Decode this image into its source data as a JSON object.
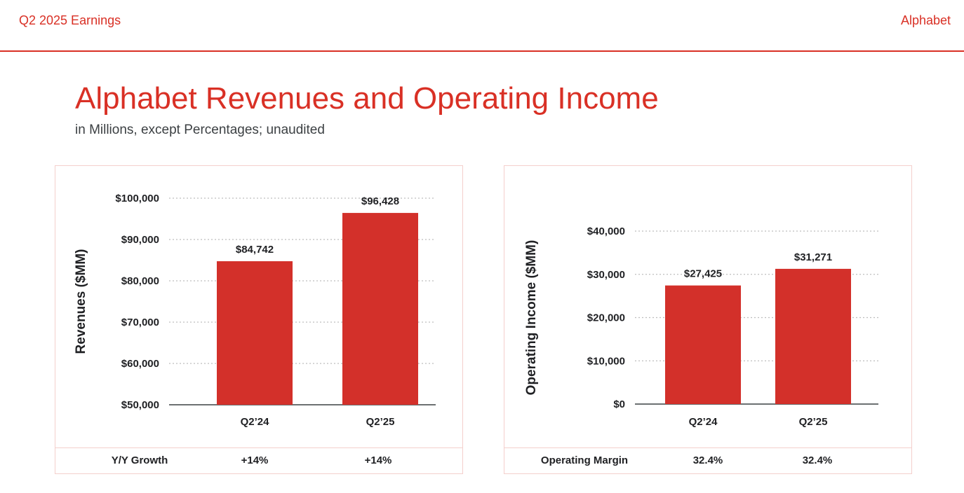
{
  "header": {
    "report_label": "Q2 2025 Earnings",
    "brand": "Alphabet"
  },
  "page": {
    "title": "Alphabet Revenues and Operating Income",
    "subtitle": "in Millions, except Percentages; unaudited"
  },
  "colors": {
    "accent": "#d93025",
    "bar": "#d3302a",
    "panel_border": "#f4cfcc",
    "gridline": "#bdbdbd",
    "axis": "#3c4043"
  },
  "chart_data": [
    {
      "type": "bar",
      "title": "",
      "xlabel": "",
      "ylabel": "Revenues ($MM)",
      "categories": [
        "Q2’24",
        "Q2’25"
      ],
      "values": [
        84742,
        96428
      ],
      "value_labels": [
        "$84,742",
        "$96,428"
      ],
      "ylim": [
        50000,
        100000
      ],
      "yticks": [
        50000,
        60000,
        70000,
        80000,
        90000,
        100000
      ],
      "ytick_labels": [
        "$50,000",
        "$60,000",
        "$70,000",
        "$80,000",
        "$90,000",
        "$100,000"
      ],
      "grid": true,
      "footer": {
        "label": "Y/Y Growth",
        "values": [
          "+14%",
          "+14%"
        ]
      }
    },
    {
      "type": "bar",
      "title": "",
      "xlabel": "",
      "ylabel": "Operating Income ($MM)",
      "categories": [
        "Q2’24",
        "Q2’25"
      ],
      "values": [
        27425,
        31271
      ],
      "value_labels": [
        "$27,425",
        "$31,271"
      ],
      "ylim": [
        0,
        40000
      ],
      "yticks": [
        0,
        10000,
        20000,
        30000,
        40000
      ],
      "ytick_labels": [
        "$0",
        "$10,000",
        "$20,000",
        "$30,000",
        "$40,000"
      ],
      "grid": true,
      "footer": {
        "label": "Operating Margin",
        "values": [
          "32.4%",
          "32.4%"
        ]
      }
    }
  ]
}
